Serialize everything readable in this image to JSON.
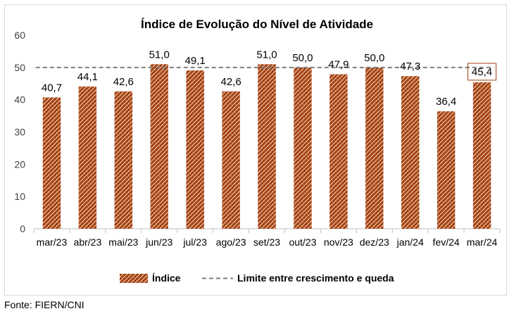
{
  "chart_data": {
    "type": "bar",
    "title": "Índice de Evolução do Nível de Atividade",
    "xlabel": "",
    "ylabel": "",
    "categories": [
      "mar/23",
      "abr/23",
      "mai/23",
      "jun/23",
      "jul/23",
      "ago/23",
      "set/23",
      "out/23",
      "nov/23",
      "dez/23",
      "jan/24",
      "fev/24",
      "mar/24"
    ],
    "series": [
      {
        "name": "Índice",
        "values": [
          40.7,
          44.1,
          42.6,
          51.0,
          49.1,
          42.6,
          51.0,
          50.0,
          47.9,
          50.0,
          47.3,
          36.4,
          45.4
        ]
      }
    ],
    "value_labels": [
      "40,7",
      "44,1",
      "42,6",
      "51,0",
      "49,1",
      "42,6",
      "51,0",
      "50,0",
      "47,9",
      "50,0",
      "47,3",
      "36,4",
      "45,4"
    ],
    "threshold": {
      "name": "Limite entre crescimento e queda",
      "value": 50
    },
    "ylim": [
      0,
      60
    ],
    "yticks": [
      0,
      10,
      20,
      30,
      40,
      50,
      60
    ],
    "legend_position": "bottom",
    "grid": false,
    "highlighted_category": "mar/24",
    "colors": {
      "bar_fill": "#a13d0c",
      "bar_pattern": "#f3d3bd",
      "threshold_line": "#7f7f7f",
      "axis": "#bfbfbf"
    }
  },
  "source": "Fonte: FIERN/CNI"
}
